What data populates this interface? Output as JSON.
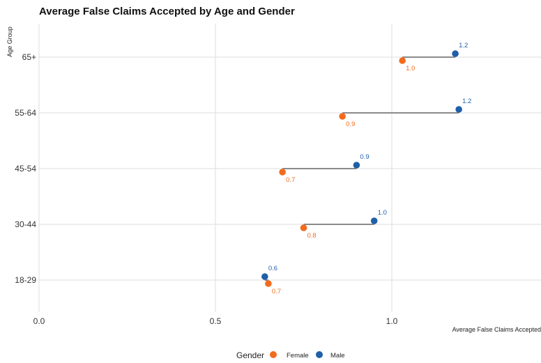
{
  "chart_data": {
    "type": "scatter",
    "subtype": "dumbbell",
    "title": "Average False Claims Accepted by Age and Gender",
    "xlabel": "Average False Claims Accepted",
    "ylabel": "Age Group",
    "categories": [
      "18-29",
      "30-44",
      "45-54",
      "55-64",
      "65+"
    ],
    "series": [
      {
        "name": "Female",
        "color": "#f26b1d",
        "values": [
          0.65,
          0.75,
          0.69,
          0.86,
          1.03
        ],
        "labels": [
          "0.7",
          "0.8",
          "0.7",
          "0.9",
          "1.0"
        ]
      },
      {
        "name": "Male",
        "color": "#1f5fa8",
        "values": [
          0.64,
          0.95,
          0.9,
          1.19,
          1.18
        ],
        "labels": [
          "0.6",
          "1.0",
          "0.9",
          "1.2",
          "1.2"
        ]
      }
    ],
    "xlim": [
      0,
      1.42
    ],
    "xticks": [
      "0.0",
      "0.5",
      "1.0"
    ],
    "xtick_values": [
      0,
      0.5,
      1.0
    ],
    "grid": true,
    "legend": {
      "title": "Gender",
      "position": "bottom"
    }
  }
}
